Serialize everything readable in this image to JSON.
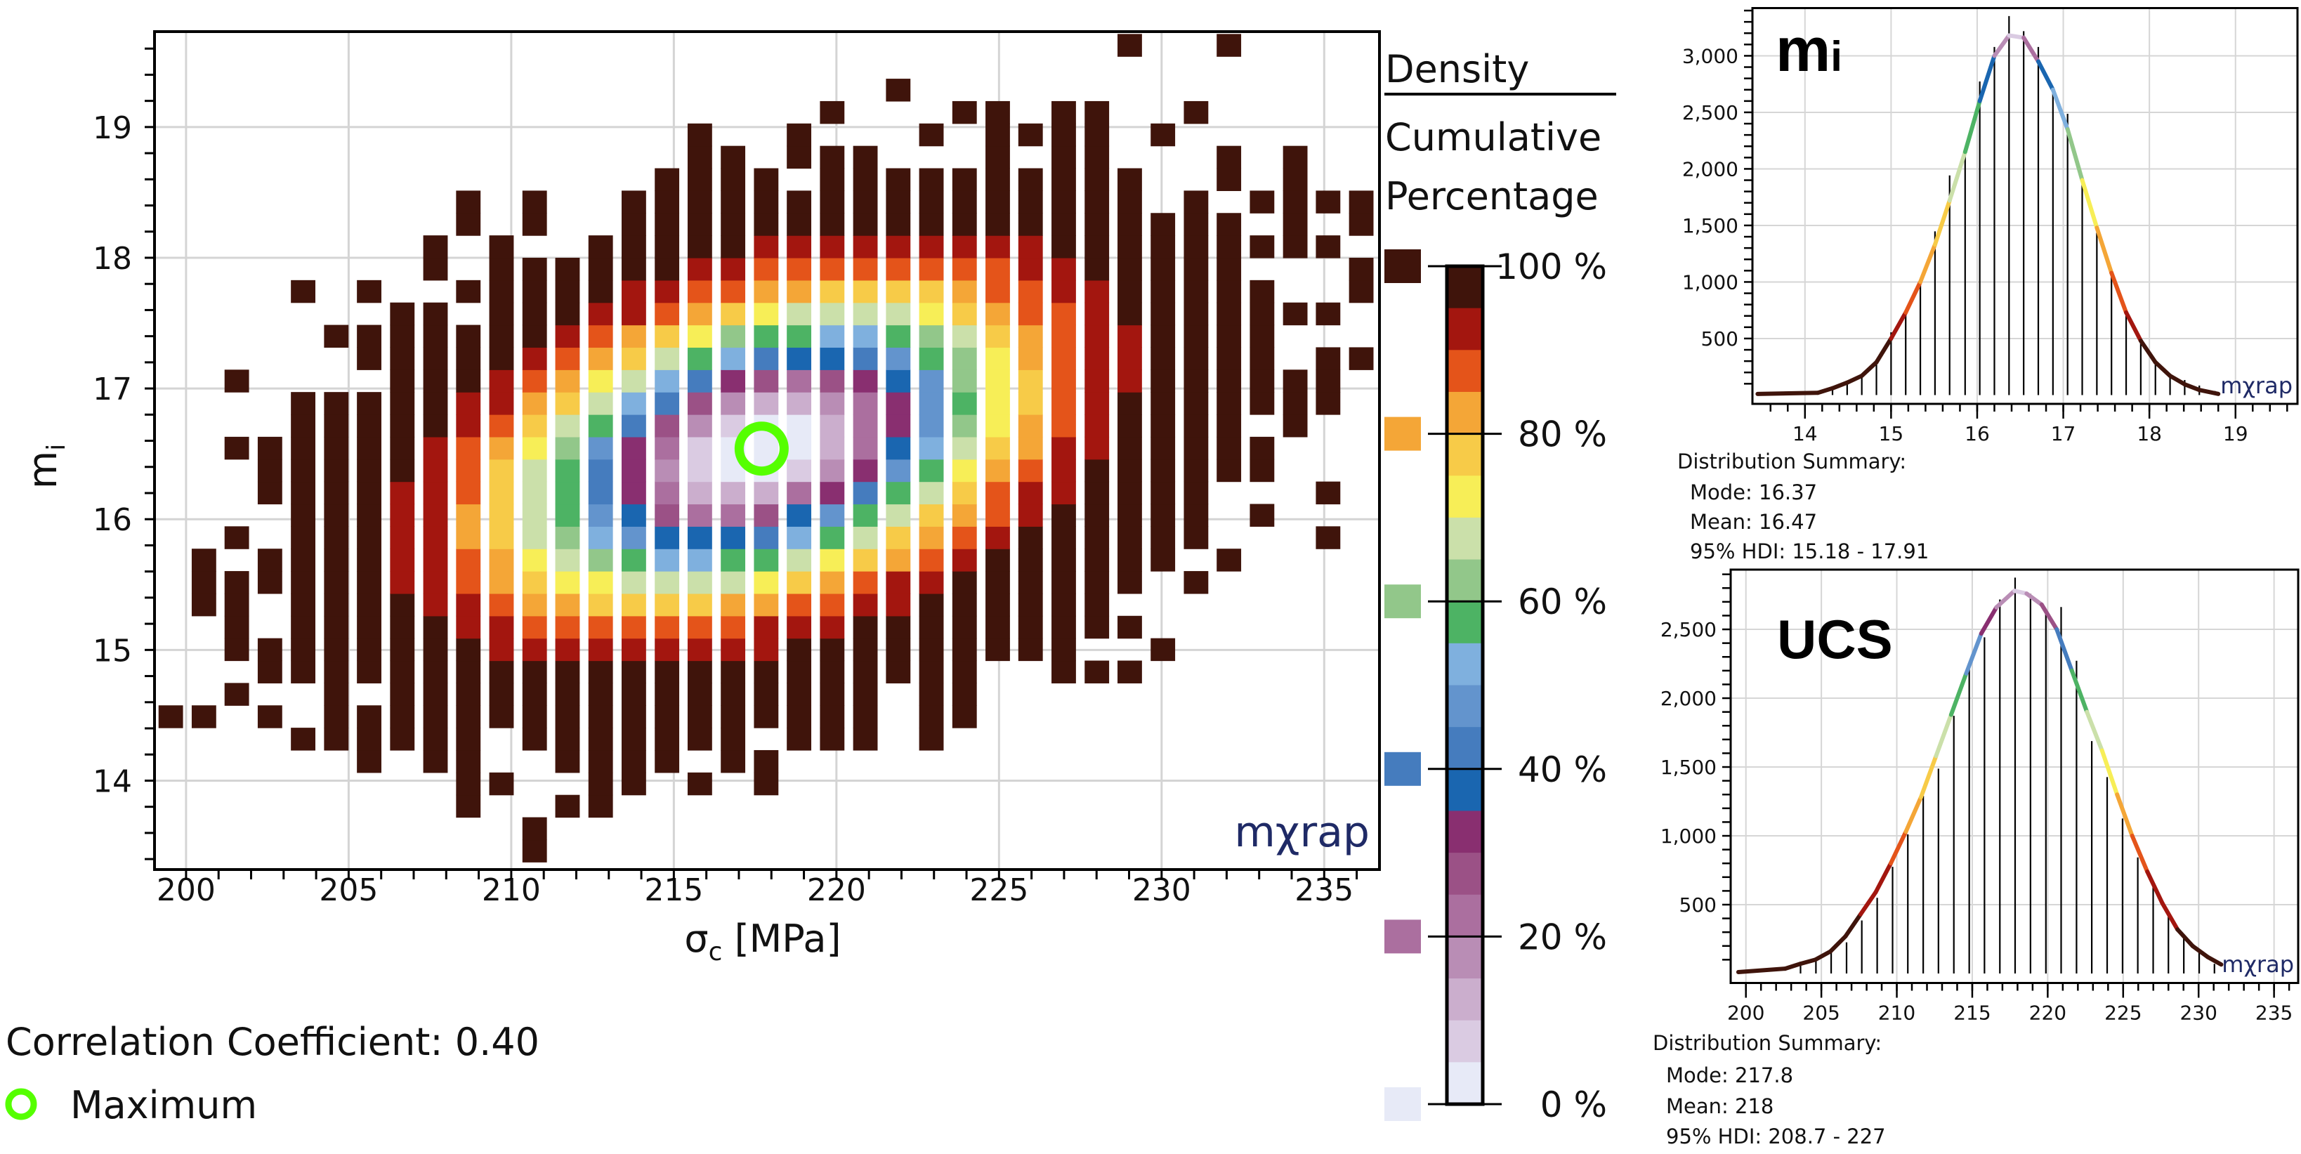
{
  "chart_data": [
    {
      "type": "heatmap",
      "xlabel": {
        "symbol": "σ",
        "sub": "c",
        "unit": " [MPa]"
      },
      "ylabel": {
        "symbol": "m",
        "sub": "i"
      },
      "xlim": [
        199.03,
        236.7
      ],
      "ylim": [
        13.32,
        19.73
      ],
      "xticks": [
        200,
        205,
        210,
        215,
        220,
        225,
        230,
        235
      ],
      "xtick_labels": [
        "200",
        "205",
        "210",
        "215",
        "220",
        "225",
        "230",
        "235"
      ],
      "yticks": [
        14,
        15,
        16,
        17,
        18,
        19
      ],
      "ytick_labels": [
        "14",
        "15",
        "16",
        "17",
        "18",
        "19"
      ],
      "grid": true,
      "bin_width": 1.017,
      "bin_height": 0.1712,
      "columns": [
        {
          "x": 199.53,
          "segments": [
            [
              14.4,
              14.57
            ]
          ]
        },
        {
          "x": 200.55,
          "segments": [
            [
              14.4,
              14.57
            ],
            [
              15.25,
              15.77
            ]
          ]
        },
        {
          "x": 201.56,
          "segments": [
            [
              14.57,
              14.75
            ],
            [
              14.92,
              15.6
            ],
            [
              15.77,
              15.94
            ],
            [
              16.46,
              16.63
            ],
            [
              16.97,
              17.14
            ]
          ]
        },
        {
          "x": 202.58,
          "segments": [
            [
              14.4,
              14.57
            ],
            [
              14.74,
              15.09
            ],
            [
              15.43,
              15.77
            ],
            [
              16.11,
              16.63
            ]
          ]
        },
        {
          "x": 203.6,
          "segments": [
            [
              14.23,
              14.4
            ],
            [
              14.74,
              16.97
            ],
            [
              17.66,
              17.83
            ]
          ]
        },
        {
          "x": 204.62,
          "segments": [
            [
              14.23,
              16.97
            ],
            [
              17.31,
              17.49
            ]
          ]
        },
        {
          "x": 205.63,
          "segments": [
            [
              14.06,
              14.57
            ],
            [
              14.74,
              16.97
            ],
            [
              17.13,
              17.49
            ],
            [
              17.66,
              17.83
            ]
          ]
        },
        {
          "x": 206.65,
          "segments": [
            [
              14.23,
              17.66
            ]
          ]
        },
        {
          "x": 207.67,
          "segments": [
            [
              14.06,
              17.66
            ],
            [
              17.83,
              18.17
            ]
          ]
        },
        {
          "x": 208.68,
          "segments": [
            [
              13.71,
              17.49
            ],
            [
              17.66,
              17.83
            ],
            [
              18.17,
              18.51
            ]
          ]
        },
        {
          "x": 209.7,
          "segments": [
            [
              13.89,
              14.06
            ],
            [
              14.4,
              18.17
            ]
          ]
        },
        {
          "x": 210.72,
          "segments": [
            [
              13.37,
              13.72
            ],
            [
              14.23,
              18.0
            ],
            [
              18.17,
              18.51
            ]
          ]
        },
        {
          "x": 211.73,
          "segments": [
            [
              13.71,
              13.89
            ],
            [
              14.06,
              18.0
            ]
          ]
        },
        {
          "x": 212.75,
          "segments": [
            [
              13.71,
              18.17
            ]
          ]
        },
        {
          "x": 213.77,
          "segments": [
            [
              13.88,
              18.51
            ]
          ]
        },
        {
          "x": 214.79,
          "segments": [
            [
              14.06,
              18.68
            ]
          ]
        },
        {
          "x": 215.8,
          "segments": [
            [
              13.88,
              14.06
            ],
            [
              14.23,
              19.03
            ]
          ]
        },
        {
          "x": 216.82,
          "segments": [
            [
              14.06,
              18.85
            ]
          ]
        },
        {
          "x": 217.84,
          "segments": [
            [
              13.88,
              14.23
            ],
            [
              14.4,
              18.68
            ]
          ]
        },
        {
          "x": 218.85,
          "segments": [
            [
              14.23,
              18.51
            ],
            [
              18.67,
              19.03
            ]
          ]
        },
        {
          "x": 219.87,
          "segments": [
            [
              14.23,
              18.85
            ],
            [
              19.03,
              19.2
            ]
          ]
        },
        {
          "x": 220.89,
          "segments": [
            [
              14.23,
              18.85
            ]
          ]
        },
        {
          "x": 221.9,
          "segments": [
            [
              14.74,
              18.68
            ],
            [
              19.2,
              19.37
            ]
          ]
        },
        {
          "x": 222.92,
          "segments": [
            [
              14.23,
              18.68
            ],
            [
              18.85,
              19.03
            ]
          ]
        },
        {
          "x": 223.94,
          "segments": [
            [
              14.4,
              18.68
            ],
            [
              19.03,
              19.2
            ]
          ]
        },
        {
          "x": 224.96,
          "segments": [
            [
              14.91,
              19.2
            ]
          ]
        },
        {
          "x": 225.97,
          "segments": [
            [
              14.91,
              18.68
            ],
            [
              18.85,
              19.03
            ]
          ]
        },
        {
          "x": 226.99,
          "segments": [
            [
              14.74,
              19.2
            ]
          ]
        },
        {
          "x": 228.01,
          "segments": [
            [
              14.74,
              14.92
            ],
            [
              15.08,
              19.2
            ]
          ]
        },
        {
          "x": 229.02,
          "segments": [
            [
              14.74,
              14.92
            ],
            [
              15.08,
              15.26
            ],
            [
              15.43,
              18.68
            ],
            [
              19.54,
              19.71
            ]
          ]
        },
        {
          "x": 230.04,
          "segments": [
            [
              14.91,
              15.09
            ],
            [
              15.6,
              18.34
            ],
            [
              18.85,
              19.03
            ]
          ]
        },
        {
          "x": 231.06,
          "segments": [
            [
              15.43,
              15.6
            ],
            [
              15.76,
              18.51
            ],
            [
              19.03,
              19.2
            ]
          ]
        },
        {
          "x": 232.07,
          "segments": [
            [
              15.6,
              15.77
            ],
            [
              16.27,
              18.34
            ],
            [
              18.51,
              18.85
            ],
            [
              19.54,
              19.71
            ]
          ]
        },
        {
          "x": 233.09,
          "segments": [
            [
              15.93,
              16.11
            ],
            [
              16.27,
              16.63
            ],
            [
              16.79,
              17.83
            ],
            [
              17.99,
              18.17
            ],
            [
              18.34,
              18.51
            ]
          ]
        },
        {
          "x": 234.11,
          "segments": [
            [
              16.62,
              17.14
            ],
            [
              17.47,
              17.66
            ],
            [
              17.99,
              18.85
            ]
          ]
        },
        {
          "x": 235.12,
          "segments": [
            [
              15.77,
              15.94
            ],
            [
              16.11,
              16.29
            ],
            [
              16.79,
              17.31
            ],
            [
              17.47,
              17.66
            ],
            [
              17.99,
              18.17
            ],
            [
              18.34,
              18.51
            ]
          ]
        },
        {
          "x": 236.14,
          "segments": [
            [
              17.13,
              17.31
            ],
            [
              17.66,
              18.0
            ],
            [
              18.17,
              18.51
            ]
          ]
        }
      ],
      "maximum": {
        "x": 217.7,
        "y": 16.54,
        "label": "Maximum",
        "color": "#55ff00"
      },
      "correlation_label": "Correlation Coefficient: 0.40",
      "correlation": 0.4,
      "watermark": "mχrap",
      "colorbar": {
        "title": "Density",
        "subtitle_line1": "Cumulative",
        "subtitle_line2": "Percentage",
        "colors": [
          "#3f140b",
          "#a3160f",
          "#e4541a",
          "#f4a637",
          "#f7cb48",
          "#f7ee57",
          "#cbe0aa",
          "#92c78a",
          "#4db364",
          "#7fb0de",
          "#6394cd",
          "#457cbe",
          "#1a66b0",
          "#892f70",
          "#9b5186",
          "#ab6f9f",
          "#b98db5",
          "#cbaecd",
          "#dacbe2",
          "#e7eaf7"
        ],
        "ticks": [
          100,
          80,
          60,
          40,
          20,
          0
        ],
        "tick_labels": [
          "100 %",
          "80 %",
          "60 %",
          "40 %",
          "20 %",
          "0 %"
        ],
        "legend_swatches": [
          "#3f140b",
          "#f4a637",
          "#92c78a",
          "#457cbe",
          "#ab6f9f",
          "#e7eaf7"
        ]
      }
    },
    {
      "type": "bar",
      "title": {
        "symbol": "m",
        "sub": "i"
      },
      "xlim": [
        13.39,
        19.72
      ],
      "ylim": [
        -78,
        3422
      ],
      "xticks": [
        14,
        15,
        16,
        17,
        18,
        19
      ],
      "xtick_labels": [
        "14",
        "15",
        "16",
        "17",
        "18",
        "19"
      ],
      "yticks": [
        500,
        1000,
        1500,
        2000,
        2500,
        3000
      ],
      "ytick_labels": [
        "500",
        "1,000",
        "1,500",
        "2,000",
        "2,500",
        "3,000"
      ],
      "grid": true,
      "x": [
        14.32,
        14.49,
        14.66,
        14.83,
        15.0,
        15.17,
        15.34,
        15.51,
        15.68,
        15.86,
        16.03,
        16.2,
        16.37,
        16.54,
        16.71,
        16.88,
        17.05,
        17.22,
        17.39,
        17.56,
        17.73,
        17.9,
        18.07,
        18.24,
        18.41,
        18.58,
        18.76
      ],
      "values": [
        68,
        117,
        175,
        295,
        555,
        734,
        987,
        1448,
        1942,
        2162,
        2773,
        3078,
        3351,
        3218,
        3078,
        2688,
        2487,
        1902,
        1435,
        1097,
        756,
        506,
        295,
        182,
        133,
        84,
        36
      ],
      "curve": {
        "x": [
          13.45,
          14.15,
          14.32,
          14.49,
          14.66,
          14.83,
          15.0,
          15.17,
          15.34,
          15.51,
          15.68,
          15.86,
          16.03,
          16.2,
          16.37,
          16.54,
          16.71,
          16.88,
          17.05,
          17.22,
          17.39,
          17.56,
          17.73,
          17.9,
          18.07,
          18.24,
          18.41,
          18.58,
          18.8
        ],
        "y": [
          10,
          20,
          60,
          110,
          170,
          290,
          500,
          730,
          1000,
          1330,
          1720,
          2150,
          2600,
          3000,
          3180,
          3160,
          2950,
          2700,
          2350,
          1900,
          1480,
          1080,
          730,
          480,
          290,
          170,
          95,
          45,
          10
        ]
      },
      "watermark": "mχrap",
      "summary": {
        "heading": "Distribution Summary:",
        "mode": "Mode: 16.37",
        "mean": "Mean: 16.47",
        "hdi": "95% HDI: 15.18 - 17.91",
        "hdi_low": 15.18,
        "hdi_high": 17.91,
        "mean_value": 16.47
      }
    },
    {
      "type": "bar",
      "title": "UCS",
      "xlim": [
        198.99,
        236.6
      ],
      "ylim": [
        -69,
        2934
      ],
      "xticks": [
        200,
        205,
        210,
        215,
        220,
        225,
        230,
        235
      ],
      "xtick_labels": [
        "200",
        "205",
        "210",
        "215",
        "220",
        "225",
        "230",
        "235"
      ],
      "yticks": [
        500,
        1000,
        1500,
        2000,
        2500
      ],
      "ytick_labels": [
        "500",
        "1,000",
        "1,500",
        "2,000",
        "2,500"
      ],
      "grid": true,
      "x": [
        203.62,
        204.64,
        205.65,
        206.67,
        207.68,
        208.7,
        209.72,
        210.73,
        211.75,
        212.76,
        213.78,
        214.8,
        215.81,
        216.83,
        217.84,
        218.86,
        219.88,
        220.89,
        221.91,
        222.92,
        223.94,
        224.96,
        225.97,
        226.99,
        228.0,
        229.02,
        230.04,
        231.05
      ],
      "values": [
        56,
        111,
        152,
        226,
        385,
        550,
        775,
        1011,
        1290,
        1488,
        1872,
        2264,
        2442,
        2717,
        2876,
        2758,
        2634,
        2662,
        2272,
        1688,
        1427,
        1126,
        843,
        632,
        440,
        262,
        179,
        70
      ],
      "curve": {
        "x": [
          199.5,
          202.6,
          203.6,
          204.6,
          205.6,
          206.6,
          207.6,
          208.6,
          209.6,
          210.6,
          211.6,
          212.6,
          213.6,
          214.6,
          215.6,
          216.6,
          217.8,
          218.6,
          219.6,
          220.6,
          221.6,
          222.6,
          223.6,
          224.6,
          225.6,
          226.6,
          227.6,
          228.6,
          229.6,
          230.6,
          231.5
        ],
        "y": [
          10,
          35,
          70,
          100,
          160,
          270,
          430,
          590,
          800,
          1030,
          1280,
          1580,
          1880,
          2180,
          2470,
          2660,
          2780,
          2760,
          2680,
          2500,
          2200,
          1900,
          1620,
          1300,
          1000,
          740,
          510,
          320,
          200,
          120,
          65
        ]
      },
      "watermark": "mχrap",
      "summary": {
        "heading": "Distribution Summary:",
        "mode": "Mode: 217.8",
        "mean": "Mean: 218",
        "hdi": "95% HDI: 208.7 - 227",
        "hdi_low": 208.7,
        "hdi_high": 227,
        "mean_value": 218
      }
    }
  ]
}
